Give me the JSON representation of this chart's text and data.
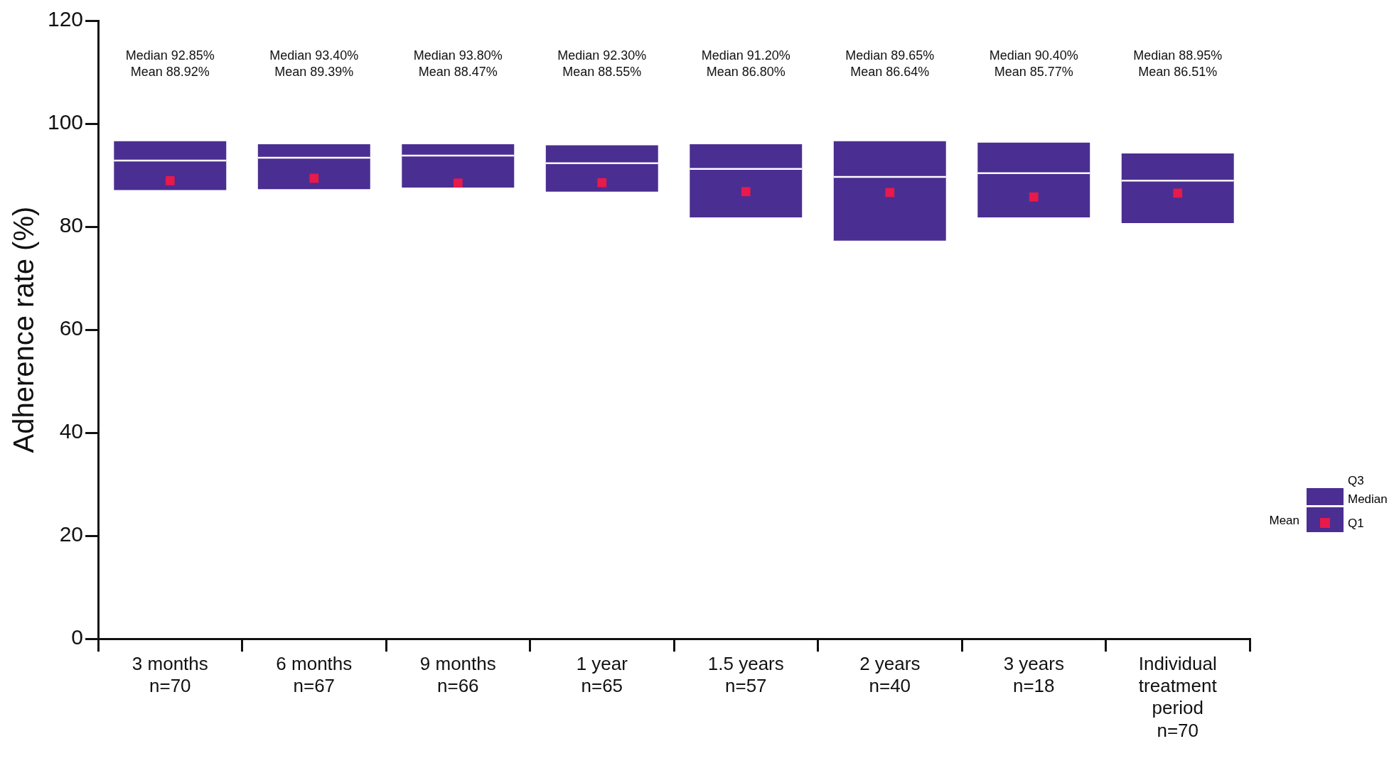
{
  "chart_data": {
    "type": "box",
    "ylabel": "Adherence rate (%)",
    "categories": [
      "3 months\nn=70",
      "6 months\nn=67",
      "9 months\nn=66",
      "1 year\nn=65",
      "1.5 years\nn=57",
      "2 years\nn=40",
      "3 years\nn=18",
      "Individual\ntreatment\nperiod\nn=70"
    ],
    "series": [
      {
        "color": "#4b2e91",
        "boxes": [
          {
            "q1": 87.1,
            "median": 92.85,
            "q3": 96.6,
            "mean": 88.92
          },
          {
            "q1": 87.3,
            "median": 93.4,
            "q3": 96.0,
            "mean": 89.39
          },
          {
            "q1": 87.6,
            "median": 93.8,
            "q3": 96.0,
            "mean": 88.47
          },
          {
            "q1": 86.8,
            "median": 92.3,
            "q3": 95.8,
            "mean": 88.55
          },
          {
            "q1": 81.8,
            "median": 91.2,
            "q3": 96.0,
            "mean": 86.8
          },
          {
            "q1": 77.3,
            "median": 89.65,
            "q3": 96.6,
            "mean": 86.64
          },
          {
            "q1": 81.8,
            "median": 90.4,
            "q3": 96.3,
            "mean": 85.77
          },
          {
            "q1": 80.7,
            "median": 88.95,
            "q3": 94.2,
            "mean": 86.51
          }
        ]
      }
    ],
    "ylim": [
      0,
      120
    ],
    "yticks": [
      0,
      20,
      40,
      60,
      80,
      100,
      120
    ],
    "grid": false,
    "annotations": [
      "Median 92.85%\nMean 88.92%",
      "Median 93.40%\nMean 89.39%",
      "Median 93.80%\nMean 88.47%",
      "Median 92.30%\nMean 88.55%",
      "Median 91.20%\nMean 86.80%",
      "Median 89.65%\nMean 86.64%",
      "Median 90.40%\nMean 85.77%",
      "Median 88.95%\nMean 86.51%",
      "Q3",
      "Median",
      "Q1",
      "Mean"
    ]
  }
}
